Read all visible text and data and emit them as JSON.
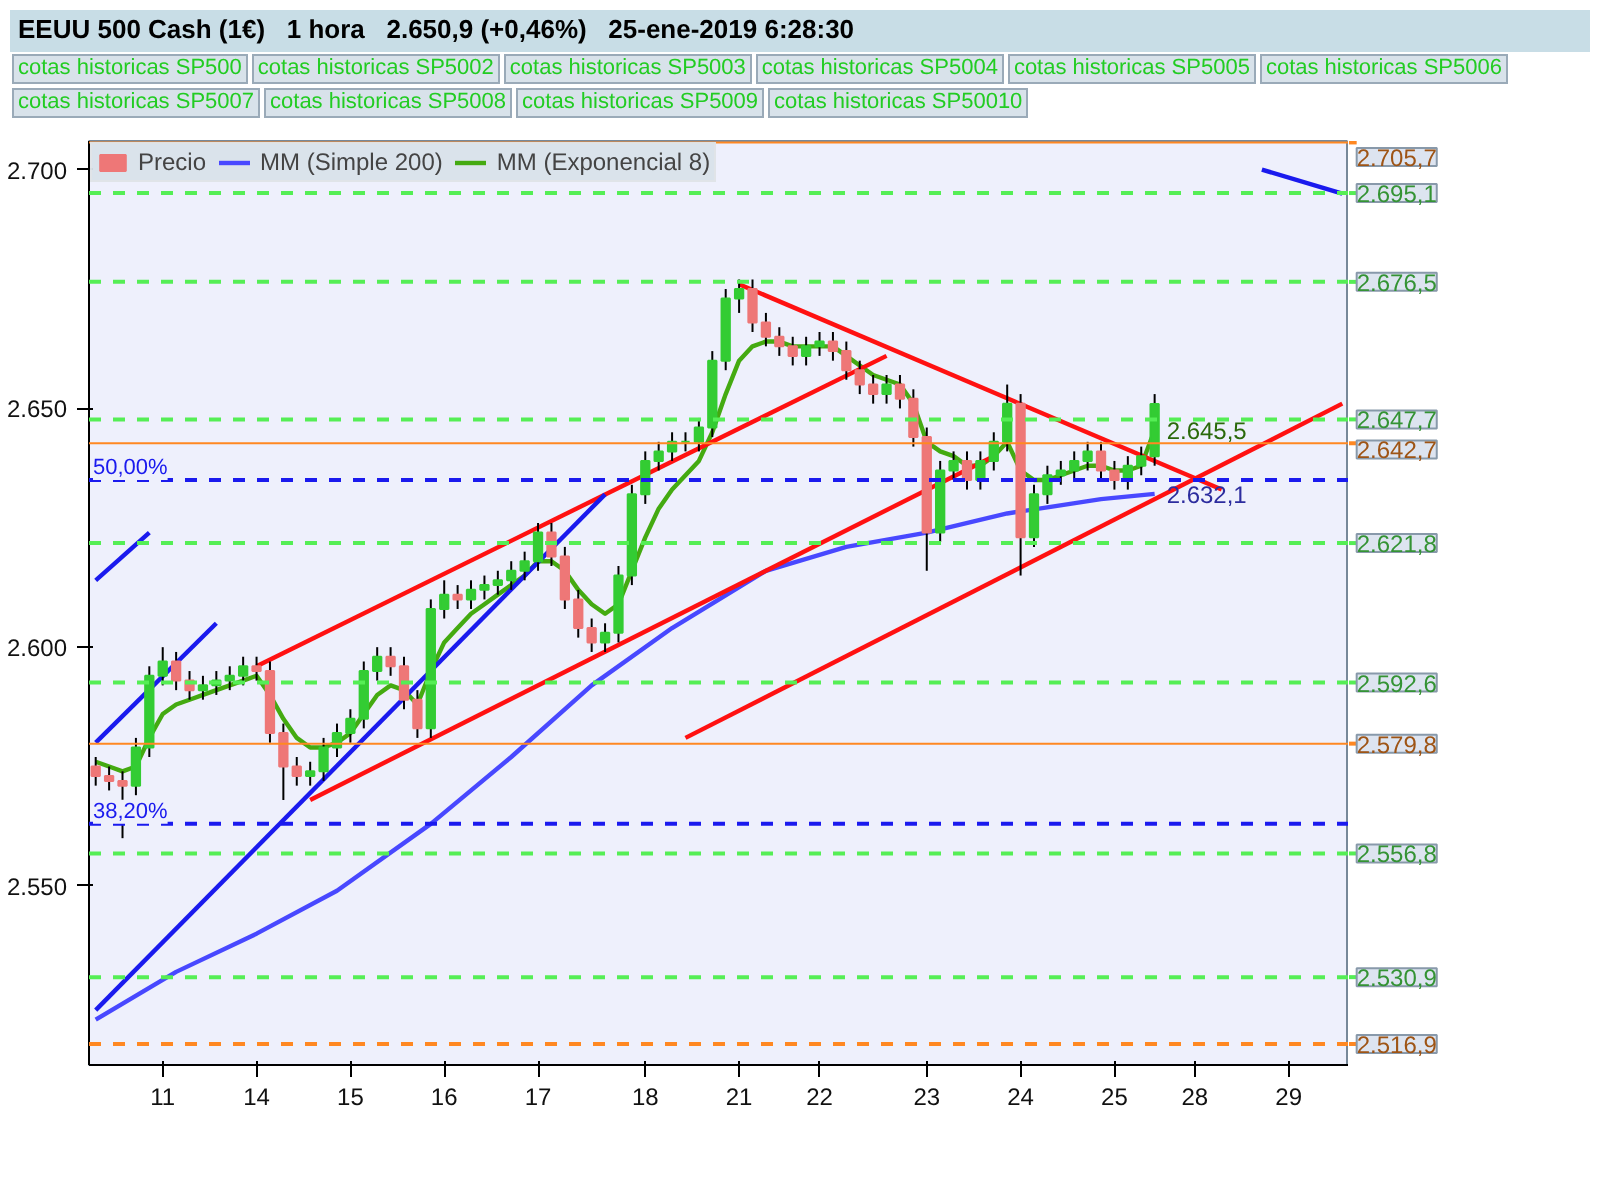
{
  "chart_data": {
    "type": "candlestick",
    "title": "EEUU 500 Cash (1€)   1 hora   2.650,9 (+0,46%)   25-ene-2019 6:28:30",
    "categories": [
      null,
      null,
      null,
      null,
      null,
      "11",
      null,
      null,
      null,
      null,
      null,
      null,
      "14",
      null,
      null,
      null,
      null,
      null,
      null,
      "15",
      null,
      null,
      null,
      null,
      null,
      null,
      "16",
      null,
      null,
      null,
      null,
      null,
      null,
      "17",
      null,
      null,
      null,
      null,
      null,
      null,
      null,
      "18",
      null,
      null,
      null,
      null,
      null,
      null,
      "21",
      null,
      null,
      null,
      null,
      null,
      "22",
      null,
      null,
      null,
      null,
      null,
      null,
      null,
      "23",
      null,
      null,
      null,
      null,
      null,
      null,
      "24",
      null,
      null,
      null,
      null,
      null,
      null,
      "25",
      null,
      null,
      null,
      null,
      null,
      "28",
      null,
      null,
      null,
      null,
      null,
      null,
      "29",
      null,
      null,
      null,
      null
    ],
    "ylim": [
      2512.5,
      2706
    ],
    "yticks": [
      {
        "value": 2550,
        "label": "2.550"
      },
      {
        "value": 2600,
        "label": "2.600"
      },
      {
        "value": 2650,
        "label": "2.650"
      },
      {
        "value": 2700,
        "label": "2.700"
      }
    ],
    "legend": "top left",
    "series": [
      {
        "name": "Precio",
        "colors": [
          "#ee7777",
          "#ee7777",
          "#ee7777",
          "#33cc33",
          "#33cc33",
          "#33cc33",
          "#ee7777",
          "#ee7777",
          "#33cc33",
          "#33cc33",
          "#33cc33",
          "#33cc33",
          "#ee7777",
          "#ee7777",
          "#ee7777",
          "#ee7777",
          "#33cc33",
          "#33cc33",
          "#33cc33",
          "#33cc33",
          "#33cc33",
          "#33cc33",
          "#ee7777",
          "#ee7777",
          "#ee7777",
          "#33cc33",
          "#33cc33",
          "#ee7777",
          "#33cc33",
          "#33cc33",
          "#33cc33",
          "#33cc33",
          "#33cc33",
          "#33cc33",
          "#ee7777",
          "#ee7777",
          "#ee7777",
          "#ee7777",
          "#33cc33",
          "#33cc33",
          "#33cc33",
          "#33cc33",
          "#33cc33",
          "#33cc33",
          "#33cc33",
          "#33cc33",
          "#33cc33",
          "#33cc33",
          "#33cc33",
          "#ee7777",
          "#ee7777",
          "#ee7777",
          "#ee7777",
          "#33cc33",
          "#33cc33",
          "#ee7777",
          "#ee7777",
          "#ee7777",
          "#ee7777",
          "#33cc33",
          "#ee7777",
          "#ee7777",
          "#ee7777",
          "#33cc33",
          "#33cc33",
          "#ee7777",
          "#33cc33",
          "#33cc33",
          "#33cc33",
          "#ee7777",
          "#33cc33",
          "#33cc33",
          "#33cc33",
          "#33cc33",
          "#33cc33",
          "#ee7777",
          "#ee7777",
          "#33cc33",
          "#33cc33",
          "#33cc33",
          null,
          null,
          null,
          null,
          null,
          null,
          null,
          null,
          null,
          null,
          null,
          null,
          null,
          null
        ],
        "ohlc": [
          [
            2575,
            2577,
            2571,
            2573
          ],
          [
            2573,
            2575,
            2570,
            2572
          ],
          [
            2572,
            2574,
            2560,
            2571
          ],
          [
            2571,
            2581,
            2569,
            2579
          ],
          [
            2579,
            2596,
            2577,
            2594
          ],
          [
            2594,
            2600,
            2592,
            2597
          ],
          [
            2597,
            2599,
            2591,
            2593
          ],
          [
            2593,
            2595,
            2589,
            2591
          ],
          [
            2591,
            2594,
            2589,
            2592
          ],
          [
            2592,
            2595,
            2590,
            2593
          ],
          [
            2593,
            2596,
            2591,
            2594
          ],
          [
            2594,
            2598,
            2592,
            2596
          ],
          [
            2596,
            2598,
            2593,
            2595
          ],
          [
            2595,
            2597,
            2580,
            2582
          ],
          [
            2582,
            2584,
            2568,
            2575
          ],
          [
            2575,
            2577,
            2571,
            2573
          ],
          [
            2573,
            2576,
            2571,
            2574
          ],
          [
            2574,
            2581,
            2572,
            2579
          ],
          [
            2579,
            2584,
            2577,
            2582
          ],
          [
            2582,
            2587,
            2580,
            2585
          ],
          [
            2585,
            2597,
            2583,
            2595
          ],
          [
            2595,
            2600,
            2593,
            2598
          ],
          [
            2598,
            2600,
            2594,
            2596
          ],
          [
            2596,
            2598,
            2587,
            2589
          ],
          [
            2589,
            2591,
            2581,
            2583
          ],
          [
            2583,
            2610,
            2581,
            2608
          ],
          [
            2608,
            2614,
            2606,
            2611
          ],
          [
            2611,
            2613,
            2608,
            2610
          ],
          [
            2610,
            2614,
            2608,
            2612
          ],
          [
            2612,
            2615,
            2610,
            2613
          ],
          [
            2613,
            2616,
            2611,
            2614
          ],
          [
            2614,
            2618,
            2612,
            2616
          ],
          [
            2616,
            2620,
            2614,
            2618
          ],
          [
            2618,
            2626,
            2616,
            2624
          ],
          [
            2624,
            2626,
            2617,
            2619
          ],
          [
            2619,
            2621,
            2608,
            2610
          ],
          [
            2610,
            2612,
            2602,
            2604
          ],
          [
            2604,
            2606,
            2599,
            2601
          ],
          [
            2601,
            2605,
            2599,
            2603
          ],
          [
            2603,
            2617,
            2601,
            2615
          ],
          [
            2615,
            2634,
            2613,
            2632
          ],
          [
            2632,
            2641,
            2630,
            2639
          ],
          [
            2639,
            2643,
            2637,
            2641
          ],
          [
            2641,
            2645,
            2639,
            2643
          ],
          [
            2643,
            2645,
            2641,
            2643
          ],
          [
            2643,
            2648,
            2641,
            2646
          ],
          [
            2646,
            2662,
            2644,
            2660
          ],
          [
            2660,
            2675,
            2658,
            2673
          ],
          [
            2673,
            2677,
            2670,
            2675
          ],
          [
            2675,
            2677,
            2666,
            2668
          ],
          [
            2668,
            2670,
            2663,
            2665
          ],
          [
            2665,
            2667,
            2661,
            2663
          ],
          [
            2663,
            2665,
            2659,
            2661
          ],
          [
            2661,
            2665,
            2659,
            2663
          ],
          [
            2663,
            2666,
            2661,
            2664
          ],
          [
            2664,
            2666,
            2660,
            2662
          ],
          [
            2662,
            2664,
            2656,
            2658
          ],
          [
            2658,
            2660,
            2653,
            2655
          ],
          [
            2655,
            2657,
            2651,
            2653
          ],
          [
            2653,
            2657,
            2651,
            2655
          ],
          [
            2655,
            2657,
            2650,
            2652
          ],
          [
            2652,
            2654,
            2642,
            2644
          ],
          [
            2644,
            2646,
            2616,
            2624
          ],
          [
            2624,
            2639,
            2622,
            2637
          ],
          [
            2637,
            2641,
            2635,
            2639
          ],
          [
            2639,
            2641,
            2633,
            2635
          ],
          [
            2635,
            2641,
            2633,
            2639
          ],
          [
            2639,
            2645,
            2637,
            2643
          ],
          [
            2643,
            2655,
            2641,
            2651
          ],
          [
            2651,
            2653,
            2615,
            2623
          ],
          [
            2623,
            2634,
            2621,
            2632
          ],
          [
            2632,
            2638,
            2630,
            2636
          ],
          [
            2636,
            2639,
            2634,
            2637
          ],
          [
            2637,
            2641,
            2635,
            2639
          ],
          [
            2639,
            2643,
            2637,
            2641
          ],
          [
            2641,
            2643,
            2635,
            2637
          ],
          [
            2637,
            2639,
            2633,
            2635
          ],
          [
            2635,
            2640,
            2633,
            2638
          ],
          [
            2638,
            2642,
            2636,
            2640
          ],
          [
            2640,
            2653,
            2638,
            2650.9
          ],
          null,
          null,
          null,
          null,
          null,
          null,
          null,
          null,
          null,
          null,
          null,
          null,
          null,
          null
        ]
      },
      {
        "name": "MM (Simple 200)",
        "type": "line",
        "color": "#4848ff",
        "values": [
          2522,
          null,
          null,
          null,
          null,
          null,
          2532,
          null,
          null,
          null,
          null,
          null,
          2540,
          null,
          null,
          null,
          null,
          null,
          2549,
          null,
          null,
          null,
          null,
          null,
          null,
          2563,
          null,
          null,
          null,
          null,
          null,
          2577,
          null,
          null,
          null,
          null,
          null,
          2592,
          null,
          null,
          null,
          null,
          null,
          2604,
          null,
          null,
          null,
          null,
          null,
          null,
          2616,
          null,
          null,
          null,
          null,
          null,
          2621,
          null,
          null,
          null,
          null,
          null,
          2624,
          null,
          null,
          null,
          null,
          null,
          2628,
          null,
          null,
          null,
          null,
          null,
          null,
          2631,
          null,
          null,
          null,
          2632.1,
          null,
          null,
          null,
          null,
          null,
          null,
          null,
          null,
          null,
          null,
          null,
          null,
          null,
          null
        ],
        "value_labels": [
          null,
          null,
          null,
          null,
          null,
          null,
          null,
          null,
          null,
          null,
          null,
          null,
          null,
          null,
          null,
          null,
          null,
          null,
          null,
          null,
          null,
          null,
          null,
          null,
          null,
          null,
          null,
          null,
          null,
          null,
          null,
          null,
          null,
          null,
          null,
          null,
          null,
          null,
          null,
          null,
          null,
          null,
          null,
          null,
          null,
          null,
          null,
          null,
          null,
          null,
          null,
          null,
          null,
          null,
          null,
          null,
          null,
          null,
          null,
          null,
          null,
          null,
          null,
          null,
          null,
          null,
          null,
          null,
          null,
          null,
          null,
          null,
          null,
          null,
          null,
          null,
          null,
          null,
          null,
          "2.632,1",
          null,
          null,
          null,
          null,
          null,
          null,
          null,
          null,
          null,
          null,
          null,
          null,
          null,
          null
        ]
      },
      {
        "name": "MM (Exponencial 8)",
        "type": "line",
        "color": "#44aa11",
        "values": [
          2576,
          2575,
          2574,
          2575,
          2581,
          2586,
          2588,
          2589,
          2590,
          2591,
          2592,
          2593,
          2594,
          2590,
          2585,
          2581,
          2579,
          2579,
          2580,
          2582,
          2586,
          2590,
          2592,
          2591,
          2588,
          2595,
          2601,
          2604,
          2607,
          2609,
          2611,
          2613,
          2615,
          2618,
          2618,
          2616,
          2612,
          2609,
          2607,
          2609,
          2616,
          2623,
          2629,
          2633,
          2636,
          2639,
          2645,
          2653,
          2660,
          2663,
          2664,
          2664,
          2663,
          2663,
          2663,
          2663,
          2661,
          2659,
          2657,
          2656,
          2655,
          2651,
          2643,
          2641,
          2640,
          2638,
          2638,
          2640,
          2643,
          2637,
          2635,
          2635,
          2636,
          2637,
          2638,
          2638,
          2637,
          2637,
          2638,
          2645.5,
          null,
          null,
          null,
          null,
          null,
          null,
          null,
          null,
          null,
          null,
          null,
          null,
          null,
          null
        ],
        "value_labels": [
          null,
          null,
          null,
          null,
          null,
          null,
          null,
          null,
          null,
          null,
          null,
          null,
          null,
          null,
          null,
          null,
          null,
          null,
          null,
          null,
          null,
          null,
          null,
          null,
          null,
          null,
          null,
          null,
          null,
          null,
          null,
          null,
          null,
          null,
          null,
          null,
          null,
          null,
          null,
          null,
          null,
          null,
          null,
          null,
          null,
          null,
          null,
          null,
          null,
          null,
          null,
          null,
          null,
          null,
          null,
          null,
          null,
          null,
          null,
          null,
          null,
          null,
          null,
          null,
          null,
          null,
          null,
          null,
          null,
          null,
          null,
          null,
          null,
          null,
          null,
          null,
          null,
          null,
          null,
          "2.645,5",
          null,
          null,
          null,
          null,
          null,
          null,
          null,
          null,
          null,
          null,
          null,
          null,
          null,
          null
        ]
      },
      {
        "type": "line",
        "color": "#ff1111",
        "values": [
          null,
          null,
          null,
          null,
          null,
          null,
          null,
          null,
          null,
          null,
          null,
          null,
          2596,
          null,
          null,
          null,
          null,
          null,
          null,
          null,
          null,
          null,
          null,
          null,
          null,
          null,
          null,
          null,
          null,
          null,
          null,
          null,
          null,
          null,
          null,
          null,
          null,
          null,
          null,
          null,
          null,
          null,
          null,
          null,
          null,
          null,
          null,
          null,
          null,
          null,
          null,
          null,
          null,
          null,
          null,
          null,
          null,
          null,
          null,
          2661,
          null,
          null,
          null,
          null,
          null,
          null,
          null,
          null,
          null,
          null,
          null,
          null,
          null,
          null,
          null,
          null,
          null,
          null,
          null,
          null,
          null,
          null,
          null,
          null,
          null,
          null,
          null,
          null,
          null,
          null,
          null,
          null,
          null,
          null
        ]
      },
      {
        "type": "line",
        "color": "#ff1111",
        "values": [
          null,
          null,
          null,
          null,
          null,
          null,
          null,
          null,
          null,
          null,
          null,
          null,
          null,
          null,
          null,
          null,
          2568,
          null,
          null,
          null,
          null,
          null,
          null,
          null,
          null,
          null,
          null,
          null,
          null,
          null,
          null,
          null,
          null,
          null,
          null,
          null,
          null,
          null,
          null,
          null,
          null,
          null,
          null,
          null,
          null,
          null,
          null,
          null,
          null,
          null,
          null,
          null,
          null,
          null,
          null,
          null,
          null,
          null,
          null,
          null,
          null,
          null,
          null,
          null,
          null,
          null,
          null,
          2640,
          null,
          null,
          null,
          null,
          null,
          null,
          null,
          null,
          null,
          null,
          null,
          null,
          null,
          null,
          null,
          null,
          null,
          null,
          null,
          null,
          null,
          null,
          null,
          null,
          null,
          null
        ]
      },
      {
        "type": "line",
        "color": "#ff1111",
        "values": [
          null,
          null,
          null,
          null,
          null,
          null,
          null,
          null,
          null,
          null,
          null,
          null,
          null,
          null,
          null,
          null,
          null,
          null,
          null,
          null,
          null,
          null,
          null,
          null,
          null,
          null,
          null,
          null,
          null,
          null,
          null,
          null,
          null,
          null,
          null,
          null,
          null,
          null,
          null,
          null,
          null,
          null,
          null,
          null,
          null,
          null,
          null,
          null,
          2676,
          null,
          null,
          null,
          null,
          null,
          null,
          null,
          null,
          null,
          null,
          null,
          null,
          null,
          null,
          null,
          null,
          null,
          null,
          null,
          null,
          null,
          null,
          null,
          null,
          null,
          null,
          null,
          null,
          null,
          null,
          null,
          null,
          null,
          null,
          null,
          2633,
          null,
          null,
          null,
          null,
          null,
          null,
          null,
          null,
          null
        ]
      },
      {
        "type": "line",
        "color": "#ff1111",
        "values": [
          null,
          null,
          null,
          null,
          null,
          null,
          null,
          null,
          null,
          null,
          null,
          null,
          null,
          null,
          null,
          null,
          null,
          null,
          null,
          null,
          null,
          null,
          null,
          null,
          null,
          null,
          null,
          null,
          null,
          null,
          null,
          null,
          null,
          null,
          null,
          null,
          null,
          null,
          null,
          null,
          null,
          null,
          null,
          null,
          2581,
          null,
          null,
          null,
          null,
          null,
          null,
          null,
          null,
          null,
          null,
          null,
          null,
          null,
          null,
          null,
          null,
          null,
          null,
          null,
          null,
          null,
          null,
          null,
          null,
          null,
          null,
          null,
          null,
          null,
          null,
          null,
          null,
          null,
          null,
          null,
          null,
          null,
          null,
          null,
          null,
          null,
          null,
          null,
          null,
          null,
          null,
          null,
          null,
          2651
        ]
      },
      {
        "type": "line",
        "color": "#1a1aee",
        "values": [
          2614,
          null,
          null,
          null,
          2624,
          null,
          null,
          null,
          null,
          null,
          null,
          null,
          null,
          null,
          null,
          null,
          null,
          null,
          null,
          null,
          null,
          null,
          null,
          null,
          null,
          null,
          null,
          null,
          null,
          null,
          null,
          null,
          null,
          null,
          null,
          null,
          null,
          null,
          null,
          null,
          null,
          null,
          null,
          null,
          null,
          null,
          null,
          null,
          null,
          null,
          null,
          null,
          null,
          null,
          null,
          null,
          null,
          null,
          null,
          null,
          null,
          null,
          null,
          null,
          null,
          null,
          null,
          null,
          null,
          null,
          null,
          null,
          null,
          null,
          null,
          null,
          null,
          null,
          null,
          null,
          null,
          null,
          null,
          null,
          null,
          null,
          null,
          null,
          null,
          null,
          null,
          null,
          null,
          null
        ]
      },
      {
        "type": "line",
        "color": "#1a1aee",
        "values": [
          2580,
          null,
          null,
          null,
          null,
          null,
          null,
          null,
          null,
          2605,
          null,
          null,
          null,
          null,
          null,
          null,
          null,
          null,
          null,
          null,
          null,
          null,
          null,
          null,
          null,
          null,
          null,
          null,
          null,
          null,
          null,
          null,
          null,
          null,
          null,
          null,
          null,
          null,
          null,
          null,
          null,
          null,
          null,
          null,
          null,
          null,
          null,
          null,
          null,
          null,
          null,
          null,
          null,
          null,
          null,
          null,
          null,
          null,
          null,
          null,
          null,
          null,
          null,
          null,
          null,
          null,
          null,
          null,
          null,
          null,
          null,
          null,
          null,
          null,
          null,
          null,
          null,
          null,
          null,
          null,
          null,
          null,
          null,
          null,
          null,
          null,
          null,
          null,
          null,
          null,
          null,
          null,
          null,
          null
        ]
      },
      {
        "type": "line",
        "color": "#1a1aee",
        "values": [
          2524,
          null,
          null,
          null,
          null,
          null,
          null,
          null,
          null,
          null,
          null,
          null,
          null,
          null,
          null,
          null,
          null,
          null,
          null,
          null,
          null,
          null,
          null,
          null,
          null,
          null,
          null,
          null,
          null,
          null,
          null,
          null,
          null,
          null,
          null,
          null,
          null,
          null,
          2632,
          null,
          null,
          null,
          null,
          null,
          null,
          null,
          null,
          null,
          null,
          null,
          null,
          null,
          null,
          null,
          null,
          null,
          null,
          null,
          null,
          null,
          null,
          null,
          null,
          null,
          null,
          null,
          null,
          null,
          null,
          null,
          null,
          null,
          null,
          null,
          null,
          null,
          null,
          null,
          null,
          null,
          null,
          null,
          null,
          null,
          null,
          null,
          null,
          null,
          null,
          null,
          null,
          null,
          null,
          null
        ]
      },
      {
        "type": "line",
        "color": "#1a1aee",
        "values": [
          null,
          null,
          null,
          null,
          null,
          null,
          null,
          null,
          null,
          null,
          null,
          null,
          null,
          null,
          null,
          null,
          null,
          null,
          null,
          null,
          null,
          null,
          null,
          null,
          null,
          null,
          null,
          null,
          null,
          null,
          null,
          null,
          null,
          null,
          null,
          null,
          null,
          null,
          null,
          null,
          null,
          null,
          null,
          null,
          null,
          null,
          null,
          null,
          null,
          null,
          null,
          null,
          null,
          null,
          null,
          null,
          null,
          null,
          null,
          null,
          null,
          null,
          null,
          null,
          null,
          null,
          null,
          null,
          null,
          null,
          null,
          null,
          null,
          null,
          null,
          null,
          null,
          null,
          null,
          null,
          null,
          null,
          null,
          null,
          null,
          null,
          null,
          2700,
          null,
          null,
          null,
          null,
          null,
          2695
        ]
      }
    ],
    "ref_lines": [
      {
        "axis": "y",
        "value": 2705.7,
        "label": "2.705,7",
        "color": "#ff8822",
        "line_style": "solid"
      },
      {
        "axis": "y",
        "value": 2695.1,
        "label": "2.695,1",
        "color": "#55ee55",
        "line_style": "dashed"
      },
      {
        "axis": "y",
        "value": 2676.5,
        "label": "2.676,5",
        "color": "#55ee55",
        "line_style": "dashed"
      },
      {
        "axis": "y",
        "value": 2647.7,
        "label": "2.647,7",
        "color": "#55ee55",
        "line_style": "dashed"
      },
      {
        "axis": "y",
        "value": 2642.7,
        "label": "2.642,7",
        "color": "#ff8822",
        "line_style": "solid"
      },
      {
        "axis": "y",
        "value": 2635,
        "color": "#1a1aee",
        "line_style": "dashed"
      },
      {
        "axis": "y",
        "value": 2621.8,
        "label": "2.621,8",
        "color": "#55ee55",
        "line_style": "dashed"
      },
      {
        "axis": "y",
        "value": 2592.6,
        "label": "2.592,6",
        "color": "#55ee55",
        "line_style": "dashed"
      },
      {
        "axis": "y",
        "value": 2579.8,
        "label": "2.579,8",
        "color": "#ff8822",
        "line_style": "solid"
      },
      {
        "axis": "y",
        "value": 2563,
        "color": "#1a1aee",
        "line_style": "dashed"
      },
      {
        "axis": "y",
        "value": 2556.8,
        "label": "2.556,8",
        "color": "#55ee55",
        "line_style": "dashed"
      },
      {
        "axis": "y",
        "value": 2530.9,
        "label": "2.530,9",
        "color": "#55ee55",
        "line_style": "dashed"
      },
      {
        "axis": "y",
        "value": 2516.9,
        "label": "2.516,9",
        "color": "#ff8822",
        "line_style": "dashed"
      }
    ],
    "annotations": [
      {
        "text": "50,00%",
        "y": 2635
      },
      {
        "text": "38,20%",
        "y": 2563
      },
      "cotas historicas SP500",
      "cotas historicas SP5002",
      "cotas historicas SP5003",
      "cotas historicas SP5004",
      "cotas historicas SP5005",
      "cotas historicas SP5006",
      "cotas historicas SP5007",
      "cotas historicas SP5008",
      "cotas historicas SP5009",
      "cotas historicas SP50010"
    ]
  }
}
